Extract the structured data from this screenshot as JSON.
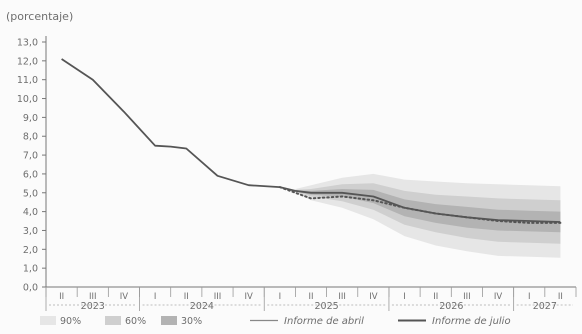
{
  "chart_data": {
    "type": "line",
    "unit_label": "(porcentaje)",
    "ylim": [
      0,
      13
    ],
    "yticks": [
      "0,0",
      "1,0",
      "2,0",
      "3,0",
      "4,0",
      "5,0",
      "6,0",
      "7,0",
      "8,0",
      "9,0",
      "10,0",
      "11,0",
      "12,0",
      "13,0"
    ],
    "grid": false,
    "quarters": [
      "II",
      "III",
      "IV",
      "I",
      "II",
      "III",
      "IV",
      "I",
      "II",
      "III",
      "IV",
      "I",
      "II",
      "III",
      "IV",
      "I",
      "II"
    ],
    "years": [
      {
        "label": "2023",
        "from": 0,
        "to": 2
      },
      {
        "label": "2024",
        "from": 3,
        "to": 6
      },
      {
        "label": "2025",
        "from": 7,
        "to": 10
      },
      {
        "label": "2026",
        "from": 11,
        "to": 14
      },
      {
        "label": "2027",
        "from": 15,
        "to": 16
      }
    ],
    "series": [
      {
        "name": "Informe de julio",
        "style": "solid",
        "color": "#555555",
        "x": [
          0,
          1,
          2,
          3,
          3.5,
          4,
          5,
          6,
          7,
          7.5,
          8,
          9,
          10,
          11,
          12,
          13,
          14,
          15,
          16
        ],
        "values": [
          12.1,
          11.0,
          9.3,
          7.5,
          7.45,
          7.35,
          5.9,
          5.4,
          5.3,
          5.1,
          5.0,
          5.0,
          4.8,
          4.2,
          3.9,
          3.7,
          3.55,
          3.5,
          3.45
        ]
      },
      {
        "name": "Informe de abril",
        "style": "dotted",
        "color": "#555555",
        "x": [
          7,
          7.5,
          8,
          9,
          10,
          11,
          12,
          13,
          14,
          15,
          16
        ],
        "values": [
          5.3,
          5.0,
          4.7,
          4.8,
          4.6,
          4.2,
          3.9,
          3.7,
          3.5,
          3.4,
          3.4
        ]
      }
    ],
    "fan": {
      "center": {
        "x": [
          7.5,
          8,
          9,
          10,
          11,
          12,
          13,
          14,
          15,
          16
        ],
        "values": [
          5.1,
          5.0,
          5.0,
          4.8,
          4.2,
          3.9,
          3.7,
          3.55,
          3.5,
          3.45
        ]
      },
      "bands": [
        {
          "name": "90%",
          "color": "#e6e6e6",
          "half_width": [
            0.1,
            0.4,
            0.8,
            1.2,
            1.5,
            1.7,
            1.8,
            1.9,
            1.9,
            1.9
          ]
        },
        {
          "name": "60%",
          "color": "#cfcfcf",
          "half_width": [
            0.05,
            0.2,
            0.45,
            0.7,
            0.9,
            1.0,
            1.1,
            1.15,
            1.15,
            1.15
          ]
        },
        {
          "name": "30%",
          "color": "#b3b3b3",
          "half_width": [
            0.03,
            0.1,
            0.2,
            0.35,
            0.45,
            0.5,
            0.55,
            0.55,
            0.55,
            0.55
          ]
        }
      ]
    },
    "legend": {
      "placement": "bottom",
      "items": [
        {
          "label": "90%",
          "kind": "swatch",
          "color": "#e6e6e6"
        },
        {
          "label": "60%",
          "kind": "swatch",
          "color": "#cfcfcf"
        },
        {
          "label": "30%",
          "kind": "swatch",
          "color": "#b3b3b3"
        },
        {
          "label": "Informe de abril",
          "kind": "line",
          "color": "#555555"
        },
        {
          "label": "Informe de julio",
          "kind": "line",
          "color": "#555555"
        }
      ]
    }
  }
}
